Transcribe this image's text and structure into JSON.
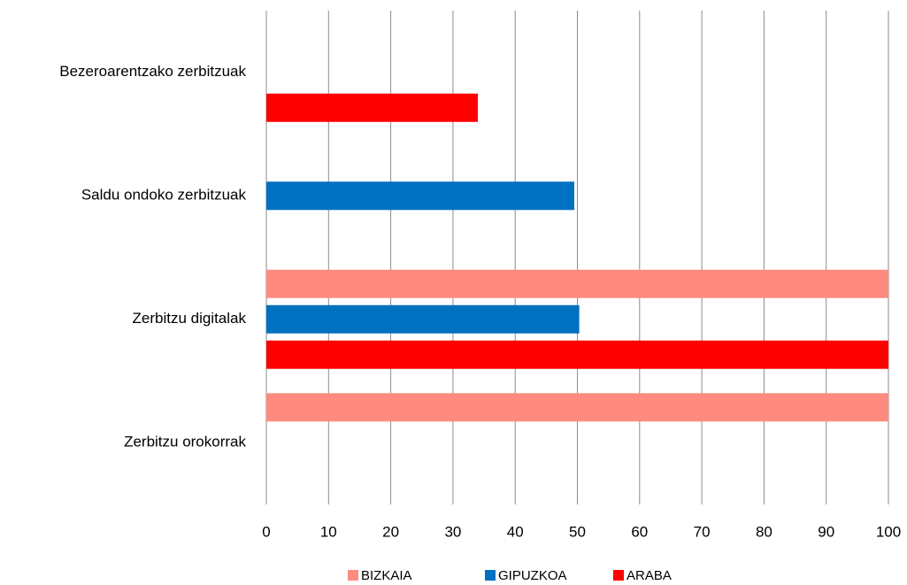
{
  "chart_data": {
    "type": "bar",
    "orientation": "horizontal",
    "categories": [
      "Bezeroarentzako zerbitzuak",
      "Saldu ondoko zerbitzuak",
      "Zerbitzu digitalak",
      "Zerbitzu orokorrak"
    ],
    "series": [
      {
        "name": "BIZKAIA",
        "color": "#ff8b80",
        "values": [
          0,
          0,
          100,
          100
        ]
      },
      {
        "name": "GIPUZKOA",
        "color": "#0070c0",
        "values": [
          0,
          49.5,
          50.3,
          0
        ]
      },
      {
        "name": "ARABA",
        "color": "#ff0000",
        "values": [
          34,
          0,
          100,
          0
        ]
      }
    ],
    "xlim": [
      0,
      100
    ],
    "xticks": [
      0,
      10,
      20,
      30,
      40,
      50,
      60,
      70,
      80,
      90,
      100
    ],
    "grid": true,
    "legend": "bottom"
  }
}
